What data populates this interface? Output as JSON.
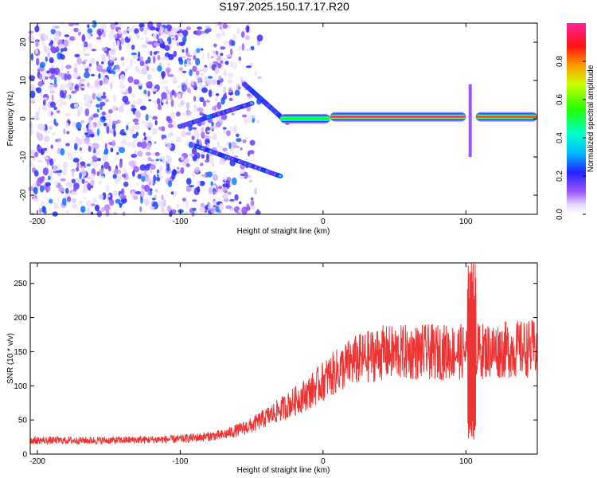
{
  "title": "S197.2025.150.17.17.R20",
  "chart_data": [
    {
      "type": "heatmap",
      "id": "spectrogram",
      "xlabel": "Height of straight line (km)",
      "ylabel": "Frequency (Hz)",
      "xlim": [
        -205,
        150
      ],
      "ylim": [
        -25,
        25
      ],
      "xticks": [
        -200,
        -100,
        0,
        100
      ],
      "yticks": [
        -20,
        -10,
        0,
        10,
        20
      ],
      "noise_region": {
        "x_from": -205,
        "x_to": -60,
        "thin_to": -40
      },
      "tone_segments": [
        {
          "x_from": -30,
          "x_to": 5,
          "f": 0,
          "amp": 0.55
        },
        {
          "x_from": 5,
          "x_to": 100,
          "f": 0.5,
          "amp": 0.95
        },
        {
          "x_from": 107,
          "x_to": 150,
          "f": 0.5,
          "amp": 0.85
        }
      ],
      "chirps": [
        {
          "x_from": -100,
          "x_to": -50,
          "f_from": -2,
          "f_to": 4
        },
        {
          "x_from": -90,
          "x_to": -30,
          "f_from": -7,
          "f_to": -15
        },
        {
          "x_from": -55,
          "x_to": -25,
          "f_from": 9,
          "f_to": -1
        }
      ],
      "spike": {
        "x": 103,
        "f_from": -10,
        "f_to": 9
      }
    },
    {
      "type": "colorbar",
      "id": "colorbar",
      "label": "Normalized spectral amplitude",
      "range": [
        0,
        1
      ],
      "ticks": [
        "0.0",
        "0.2",
        "0.4",
        "0.6",
        "0.8"
      ],
      "tick_values": [
        0.0,
        0.2,
        0.4,
        0.6,
        0.8
      ]
    },
    {
      "type": "line",
      "id": "snr",
      "series": [
        {
          "name": "SNR",
          "color": "#ee3333"
        }
      ],
      "xlabel": "Height of straight line (km)",
      "ylabel": "SNR (10 * v/v)",
      "xlim": [
        -205,
        150
      ],
      "ylim": [
        0,
        280
      ],
      "xticks": [
        -200,
        -100,
        0,
        100
      ],
      "yticks": [
        0,
        50,
        100,
        150,
        200,
        250
      ],
      "trend": [
        {
          "x": -205,
          "y": 20
        },
        {
          "x": -150,
          "y": 20
        },
        {
          "x": -100,
          "y": 22
        },
        {
          "x": -70,
          "y": 28
        },
        {
          "x": -50,
          "y": 42
        },
        {
          "x": -30,
          "y": 65
        },
        {
          "x": -10,
          "y": 90
        },
        {
          "x": 5,
          "y": 115
        },
        {
          "x": 20,
          "y": 135
        },
        {
          "x": 40,
          "y": 148
        },
        {
          "x": 100,
          "y": 150
        },
        {
          "x": 150,
          "y": 155
        }
      ],
      "spike": {
        "x": 104,
        "max": 280,
        "min": 20
      }
    }
  ]
}
